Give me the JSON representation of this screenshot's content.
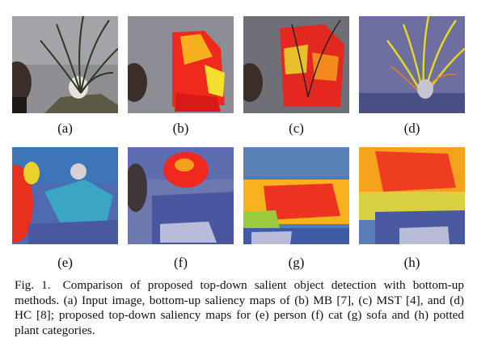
{
  "panels": [
    {
      "label": "(a)",
      "name": "input-image"
    },
    {
      "label": "(b)",
      "name": "mb-saliency-map"
    },
    {
      "label": "(c)",
      "name": "mst-saliency-map"
    },
    {
      "label": "(d)",
      "name": "hc-saliency-map"
    },
    {
      "label": "(e)",
      "name": "person-saliency-map"
    },
    {
      "label": "(f)",
      "name": "cat-saliency-map"
    },
    {
      "label": "(g)",
      "name": "sofa-saliency-map"
    },
    {
      "label": "(h)",
      "name": "potted-plant-saliency-map"
    }
  ],
  "caption": {
    "figno": "Fig. 1.",
    "text": "Comparison of proposed top-down salient object detection with bottom-up methods. (a) Input image, bottom-up saliency maps of (b) MB [7], (c) MST [4], and (d) HC [8]; proposed top-down saliency maps for (e) person (f) cat (g) sofa and (h) potted plant categories."
  }
}
